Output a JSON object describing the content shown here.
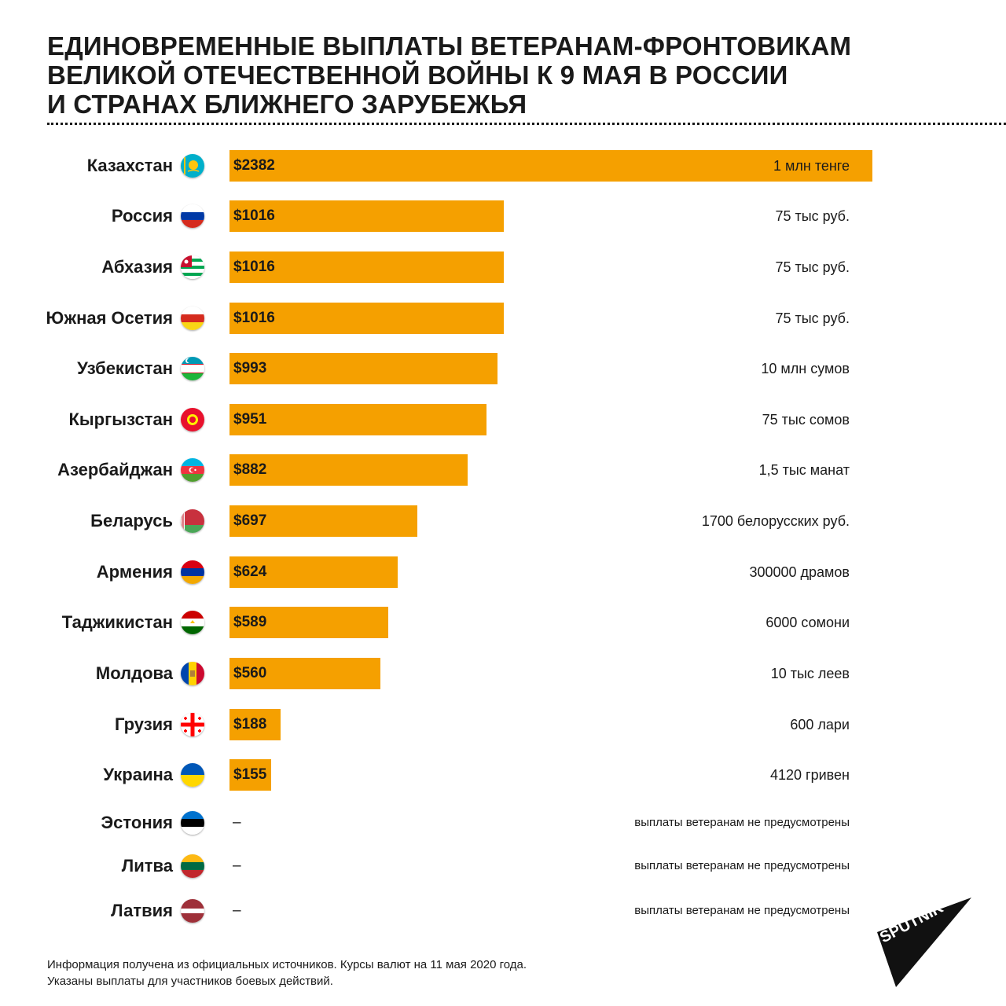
{
  "title": {
    "line1": "ЕДИНОВРЕМЕННЫЕ ВЫПЛАТЫ ВЕТЕРАНАМ-ФРОНТОВИКАМ",
    "line2": "ВЕЛИКОЙ ОТЕЧЕСТВЕННОЙ ВОЙНЫ К 9 МАЯ В РОССИИ",
    "line3": "И СТРАНАХ БЛИЖНЕГО ЗАРУБЕЖЬЯ"
  },
  "colors": {
    "bar": "#f5a000",
    "text": "#1a1a1a",
    "background": "#ffffff"
  },
  "chart_data": {
    "type": "bar",
    "orientation": "horizontal",
    "title": "ЕДИНОВРЕМЕННЫЕ ВЫПЛАТЫ ВЕТЕРАНАМ-ФРОНТОВИКАМ ВЕЛИКОЙ ОТЕЧЕСТВЕННОЙ ВОЙНЫ К 9 МАЯ В РОССИИ И СТРАНАХ БЛИЖНЕГО ЗАРУБЕЖЬЯ",
    "xlim": [
      0,
      2382
    ],
    "grid": false,
    "rows": [
      {
        "country": "Казахстан",
        "flag": "kazakhstan-flag-icon",
        "value": 2382,
        "value_label": "$2382",
        "local": "1 млн тенге"
      },
      {
        "country": "Россия",
        "flag": "russia-flag-icon",
        "value": 1016,
        "value_label": "$1016",
        "local": "75 тыс руб."
      },
      {
        "country": "Абхазия",
        "flag": "abkhazia-flag-icon",
        "value": 1016,
        "value_label": "$1016",
        "local": "75 тыс руб."
      },
      {
        "country": "Южная Осетия",
        "flag": "south-ossetia-flag-icon",
        "value": 1016,
        "value_label": "$1016",
        "local": "75 тыс руб."
      },
      {
        "country": "Узбекистан",
        "flag": "uzbekistan-flag-icon",
        "value": 993,
        "value_label": "$993",
        "local": "10 млн сумов"
      },
      {
        "country": "Кыргызстан",
        "flag": "kyrgyzstan-flag-icon",
        "value": 951,
        "value_label": "$951",
        "local": "75 тыс сомов"
      },
      {
        "country": "Азербайджан",
        "flag": "azerbaijan-flag-icon",
        "value": 882,
        "value_label": "$882",
        "local": "1,5 тыс манат"
      },
      {
        "country": "Беларусь",
        "flag": "belarus-flag-icon",
        "value": 697,
        "value_label": "$697",
        "local": "1700 белорусских  руб."
      },
      {
        "country": "Армения",
        "flag": "armenia-flag-icon",
        "value": 624,
        "value_label": "$624",
        "local": "300000 драмов"
      },
      {
        "country": "Таджикистан",
        "flag": "tajikistan-flag-icon",
        "value": 589,
        "value_label": "$589",
        "local": "6000 сомони"
      },
      {
        "country": "Молдова",
        "flag": "moldova-flag-icon",
        "value": 560,
        "value_label": "$560",
        "local": "10 тыс леев"
      },
      {
        "country": "Грузия",
        "flag": "georgia-flag-icon",
        "value": 188,
        "value_label": "$188",
        "local": "600 лари"
      },
      {
        "country": "Украина",
        "flag": "ukraine-flag-icon",
        "value": 155,
        "value_label": "$155",
        "local": "4120 гривен"
      },
      {
        "country": "Эстония",
        "flag": "estonia-flag-icon",
        "value": null,
        "value_label": "–",
        "local": "выплаты ветеранам не предусмотрены"
      },
      {
        "country": "Литва",
        "flag": "lithuania-flag-icon",
        "value": null,
        "value_label": "–",
        "local": "выплаты ветеранам не предусмотрены"
      },
      {
        "country": "Латвия",
        "flag": "latvia-flag-icon",
        "value": null,
        "value_label": "–",
        "local": "выплаты ветеранам не предусмотрены"
      }
    ]
  },
  "footnote": {
    "line1": "Информация получена из официальных источников. Курсы валют на 11 мая 2020 года.",
    "line2": "Указаны выплаты для участников боевых действий."
  },
  "logo": {
    "text": "SPUTNIK",
    "icon": "sputnik-logo-icon"
  }
}
